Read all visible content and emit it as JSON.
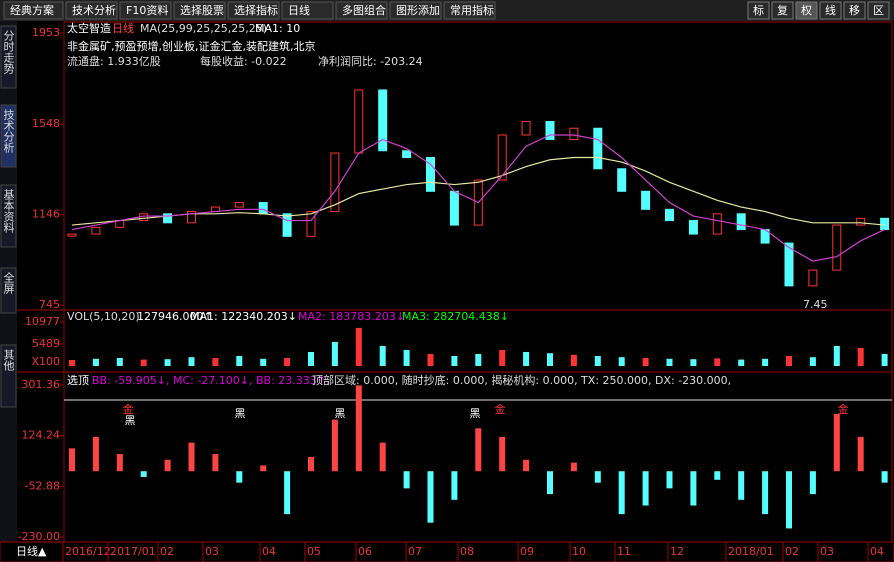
{
  "toolbar": {
    "left": [
      "经典方案",
      "技术分析",
      "F10资料",
      "选择股票",
      "选择指标",
      "日线",
      "多图组合",
      "图形添加",
      "常用指标"
    ],
    "right": [
      "标",
      "复",
      "权",
      "线",
      "移",
      "区"
    ]
  },
  "side_tabs": [
    "分时走势",
    "技术分析",
    "基本资料",
    "全屏",
    "其他"
  ],
  "chart_data": [
    {
      "type": "candlestick",
      "title": "太空智造",
      "period": "日线",
      "indicator": "MA(25,99,25,25,25,25)",
      "ma_label": "MA1: 10",
      "info": [
        "非金属矿,预盈预增,创业板,证金汇金,装配建筑,北京",
        "流通盘: 1.933亿股",
        "每股收益: -0.022",
        "净利润同比: -203.24"
      ],
      "annotation": "7.45",
      "ylim": [
        745,
        1953
      ],
      "yticks": [
        1953,
        1548,
        1146,
        745
      ],
      "values": [
        1060,
        1090,
        1120,
        1150,
        1110,
        1160,
        1180,
        1200,
        1150,
        1050,
        1160,
        1420,
        1700,
        1430,
        1400,
        1250,
        1100,
        1300,
        1500,
        1560,
        1480,
        1530,
        1350,
        1250,
        1170,
        1120,
        1060,
        1150,
        1080,
        1020,
        830,
        900,
        1100,
        1130,
        1080
      ],
      "lines": [
        {
          "color": "#e8e8a0",
          "values": [
            1100,
            1110,
            1120,
            1130,
            1140,
            1150,
            1150,
            1155,
            1150,
            1140,
            1150,
            1190,
            1240,
            1260,
            1280,
            1290,
            1280,
            1290,
            1320,
            1360,
            1390,
            1400,
            1400,
            1380,
            1340,
            1290,
            1250,
            1210,
            1180,
            1160,
            1130,
            1110,
            1110,
            1110,
            1100
          ]
        },
        {
          "color": "#d040d0",
          "values": [
            1080,
            1100,
            1120,
            1140,
            1140,
            1150,
            1160,
            1170,
            1170,
            1120,
            1120,
            1250,
            1420,
            1480,
            1440,
            1370,
            1250,
            1200,
            1320,
            1450,
            1500,
            1500,
            1480,
            1400,
            1300,
            1200,
            1140,
            1120,
            1100,
            1080,
            1000,
            940,
            960,
            1030,
            1080
          ]
        }
      ]
    },
    {
      "type": "bar",
      "header": [
        "VOL(5,10,20)",
        "127946.000↑",
        "MA1: 122340.203↓",
        "MA2: 183783.203↓",
        "MA3: 282704.438↓"
      ],
      "unit": "X100",
      "ylim": [
        0,
        10977
      ],
      "yticks": [
        10977,
        5489
      ],
      "values": [
        1500,
        1800,
        2000,
        1600,
        1700,
        2200,
        2000,
        2500,
        1800,
        2000,
        3500,
        6000,
        9500,
        5000,
        4000,
        3000,
        2500,
        3000,
        4000,
        3500,
        3200,
        2800,
        2500,
        2200,
        2000,
        1800,
        1700,
        1900,
        1600,
        1800,
        2500,
        2200,
        5000,
        4500,
        3000
      ]
    },
    {
      "type": "bar",
      "header": [
        "选顶",
        "BB: -59.905↓, MC: -27.100↓, BB: 23.333↑,",
        "顶部区域: 0.000, 随时抄底: 0.000, 揭秘机构: 0.000, TX: 250.000, DX: -230.000,"
      ],
      "markers": [
        "金",
        "黑",
        "黑",
        "黑",
        "黑",
        "金",
        "金"
      ],
      "ylim": [
        -230,
        301.36
      ],
      "yticks": [
        301.36,
        124.24,
        -52.88,
        {
          "value": -230,
          "label": "-230.00"
        }
      ],
      "values": [
        80,
        120,
        60,
        -20,
        40,
        100,
        60,
        -40,
        20,
        -150,
        50,
        180,
        300,
        100,
        -60,
        -180,
        -100,
        150,
        120,
        40,
        -80,
        30,
        -40,
        -150,
        -120,
        -60,
        -120,
        -30,
        -100,
        -150,
        -200,
        -80,
        200,
        120,
        -40
      ]
    }
  ],
  "date_axis": {
    "period": "日线▲",
    "labels": [
      "2016/12",
      "2017/01",
      "02",
      "03",
      "04",
      "05",
      "06",
      "07",
      "08",
      "09",
      "10",
      "11",
      "12",
      "2018/01",
      "02",
      "03",
      "04"
    ]
  }
}
